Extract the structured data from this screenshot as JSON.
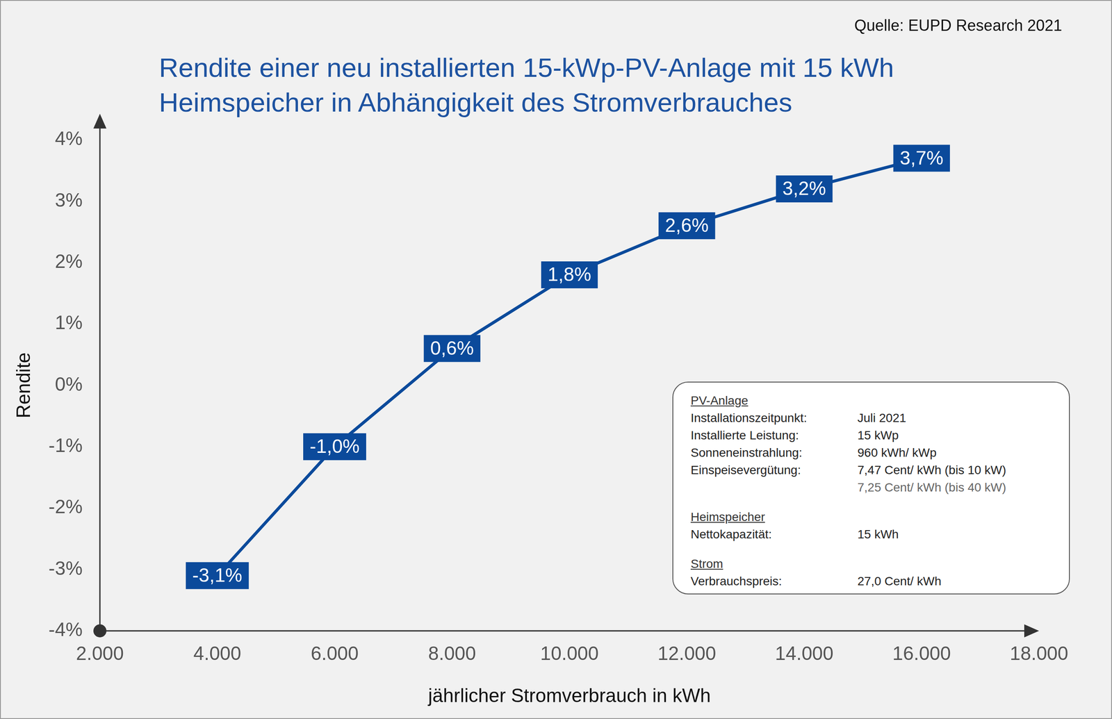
{
  "chart_data": {
    "type": "line",
    "title": [
      "Rendite einer neu installierten 15-kWp-PV-Anlage mit 15 kWh",
      "Heimspeicher in Abhängigkeit des Stromverbrauches"
    ],
    "source": "Quelle: EUPD Research 2021",
    "x_label": "jährlicher Stromverbrauch in kWh",
    "y_label": "Rendite",
    "x": [
      4000,
      6000,
      8000,
      10000,
      12000,
      14000,
      16000
    ],
    "values": [
      -3.1,
      -1.0,
      0.6,
      1.8,
      2.6,
      3.2,
      3.7
    ],
    "value_labels": [
      "-3,1%",
      "-1,0%",
      "0,6%",
      "1,8%",
      "2,6%",
      "3,2%",
      "3,7%"
    ],
    "color": "#0b4a9b",
    "data_labels": true,
    "grid": false,
    "xlim": [
      2000,
      18000
    ],
    "xticks": [
      {
        "value": 2000,
        "label": "2.000"
      },
      {
        "value": 4000,
        "label": "4.000"
      },
      {
        "value": 6000,
        "label": "6.000"
      },
      {
        "value": 8000,
        "label": "8.000"
      },
      {
        "value": 10000,
        "label": "10.000"
      },
      {
        "value": 12000,
        "label": "12.000"
      },
      {
        "value": 14000,
        "label": "14.000"
      },
      {
        "value": 16000,
        "label": "16.000"
      },
      {
        "value": 18000,
        "label": "18.000"
      }
    ],
    "ylim": [
      -4,
      4
    ],
    "yticks": [
      {
        "value": -4,
        "label": "-4%"
      },
      {
        "value": -3,
        "label": "-3%"
      },
      {
        "value": -2,
        "label": "-2%"
      },
      {
        "value": -1,
        "label": "-1%"
      },
      {
        "value": 0,
        "label": "0%"
      },
      {
        "value": 1,
        "label": "1%"
      },
      {
        "value": 2,
        "label": "2%"
      },
      {
        "value": 3,
        "label": "3%"
      },
      {
        "value": 4,
        "label": "4%"
      }
    ],
    "info_box": [
      {
        "heading": "PV-Anlage",
        "rows": [
          {
            "label": "Installationszeitpunkt:",
            "values": [
              "Juli 2021"
            ]
          },
          {
            "label": "Installierte Leistung:",
            "values": [
              "15 kWp"
            ]
          },
          {
            "label": "Sonneneinstrahlung:",
            "values": [
              "960 kWh/ kWp"
            ]
          },
          {
            "label": "Einspeisevergütung:",
            "values": [
              "7,47 Cent/ kWh (bis 10 kW)",
              "7,25 Cent/ kWh (bis 40 kW)"
            ]
          }
        ]
      },
      {
        "heading": "Heimspeicher",
        "rows": [
          {
            "label": "Nettokapazität:",
            "values": [
              "15 kWh"
            ]
          }
        ]
      },
      {
        "heading": "Strom",
        "rows": [
          {
            "label": "Verbrauchspreis:",
            "values": [
              "27,0 Cent/ kWh"
            ]
          }
        ]
      }
    ]
  }
}
